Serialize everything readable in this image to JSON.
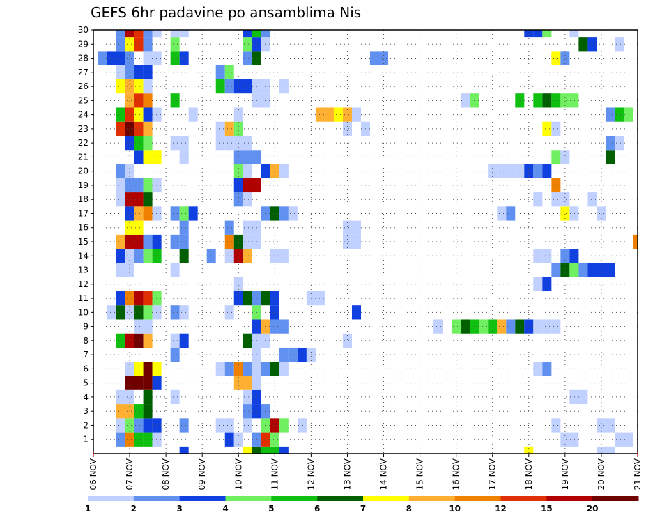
{
  "chart_data": {
    "type": "heatmap",
    "title": "GEFS 6hr padavine po ansamblima Nis",
    "x_tick_labels": [
      "06 NOV",
      "07 NOV",
      "08 NOV",
      "09 NOV",
      "10 NOV",
      "11 NOV",
      "12 NOV",
      "13 NOV",
      "14 NOV",
      "15 NOV",
      "16 NOV",
      "17 NOV",
      "18 NOV",
      "19 NOV",
      "20 NOV",
      "21 NOV"
    ],
    "y_tick_labels": [
      "1",
      "2",
      "3",
      "4",
      "5",
      "6",
      "7",
      "8",
      "9",
      "10",
      "11",
      "12",
      "13",
      "14",
      "15",
      "16",
      "17",
      "18",
      "19",
      "20",
      "21",
      "22",
      "23",
      "24",
      "25",
      "26",
      "27",
      "28",
      "29",
      "30"
    ],
    "ylim": [
      0,
      30
    ],
    "time_steps": 60,
    "steps_per_day": 4,
    "grid": true,
    "colorbar": {
      "levels": [
        "1",
        "2",
        "3",
        "4",
        "5",
        "6",
        "7",
        "8",
        "10",
        "12",
        "15",
        "20"
      ],
      "colors": [
        "#c0d0ff",
        "#6090f0",
        "#1040e0",
        "#70f060",
        "#10c010",
        "#006000",
        "#ffff00",
        "#ffb030",
        "#f08000",
        "#e03000",
        "#b00000",
        "#700000"
      ]
    },
    "rows": {
      "30": [
        [
          3,
          2
        ],
        [
          4,
          11
        ],
        [
          5,
          10
        ],
        [
          6,
          2
        ],
        [
          7,
          1
        ],
        [
          9,
          1
        ],
        [
          10,
          1
        ],
        [
          17,
          3
        ],
        [
          18,
          5
        ],
        [
          19,
          2
        ],
        [
          48,
          3
        ],
        [
          49,
          3
        ],
        [
          50,
          4
        ],
        [
          53,
          1
        ]
      ],
      "29": [
        [
          3,
          2
        ],
        [
          4,
          7
        ],
        [
          5,
          10
        ],
        [
          6,
          2
        ],
        [
          9,
          4
        ],
        [
          17,
          4
        ],
        [
          18,
          3
        ],
        [
          19,
          1
        ],
        [
          54,
          6
        ],
        [
          55,
          3
        ],
        [
          58,
          1
        ]
      ],
      "28": [
        [
          1,
          2
        ],
        [
          2,
          3
        ],
        [
          3,
          3
        ],
        [
          4,
          2
        ],
        [
          6,
          1
        ],
        [
          7,
          1
        ],
        [
          9,
          5
        ],
        [
          10,
          3
        ],
        [
          17,
          2
        ],
        [
          18,
          6
        ],
        [
          31,
          2
        ],
        [
          32,
          2
        ],
        [
          51,
          7
        ],
        [
          52,
          2
        ]
      ],
      "27": [
        [
          3,
          1
        ],
        [
          4,
          2
        ],
        [
          5,
          3
        ],
        [
          6,
          3
        ],
        [
          14,
          2
        ],
        [
          15,
          4
        ]
      ],
      "26": [
        [
          3,
          7
        ],
        [
          4,
          8
        ],
        [
          5,
          7
        ],
        [
          6,
          1
        ],
        [
          14,
          5
        ],
        [
          15,
          2
        ],
        [
          16,
          3
        ],
        [
          17,
          3
        ],
        [
          18,
          1
        ],
        [
          19,
          1
        ],
        [
          21,
          1
        ]
      ],
      "25": [
        [
          4,
          8
        ],
        [
          5,
          10
        ],
        [
          6,
          9
        ],
        [
          9,
          5
        ],
        [
          18,
          1
        ],
        [
          19,
          1
        ],
        [
          41,
          1
        ],
        [
          42,
          4
        ],
        [
          47,
          5
        ],
        [
          49,
          5
        ],
        [
          50,
          6
        ],
        [
          51,
          5
        ],
        [
          52,
          4
        ],
        [
          53,
          4
        ]
      ],
      "24": [
        [
          3,
          5
        ],
        [
          4,
          10
        ],
        [
          5,
          7
        ],
        [
          6,
          3
        ],
        [
          7,
          1
        ],
        [
          11,
          1
        ],
        [
          16,
          1
        ],
        [
          25,
          8
        ],
        [
          26,
          8
        ],
        [
          27,
          7
        ],
        [
          28,
          8
        ],
        [
          29,
          1
        ],
        [
          57,
          2
        ],
        [
          58,
          5
        ],
        [
          59,
          4
        ]
      ],
      "23": [
        [
          3,
          10
        ],
        [
          4,
          12
        ],
        [
          5,
          10
        ],
        [
          6,
          8
        ],
        [
          14,
          1
        ],
        [
          15,
          8
        ],
        [
          16,
          4
        ],
        [
          28,
          1
        ],
        [
          30,
          1
        ],
        [
          50,
          7
        ],
        [
          51,
          1
        ]
      ],
      "22": [
        [
          4,
          3
        ],
        [
          5,
          5
        ],
        [
          6,
          4
        ],
        [
          9,
          1
        ],
        [
          10,
          1
        ],
        [
          14,
          1
        ],
        [
          15,
          1
        ],
        [
          16,
          1
        ],
        [
          17,
          1
        ],
        [
          57,
          2
        ],
        [
          58,
          1
        ]
      ],
      "21": [
        [
          5,
          3
        ],
        [
          6,
          7
        ],
        [
          7,
          7
        ],
        [
          10,
          1
        ],
        [
          16,
          2
        ],
        [
          17,
          2
        ],
        [
          18,
          2
        ],
        [
          51,
          4
        ],
        [
          52,
          1
        ],
        [
          57,
          6
        ]
      ],
      "20": [
        [
          3,
          2
        ],
        [
          4,
          1
        ],
        [
          16,
          4
        ],
        [
          17,
          1
        ],
        [
          19,
          3
        ],
        [
          20,
          8
        ],
        [
          21,
          1
        ],
        [
          44,
          1
        ],
        [
          45,
          1
        ],
        [
          46,
          1
        ],
        [
          47,
          1
        ],
        [
          48,
          3
        ],
        [
          49,
          2
        ],
        [
          50,
          3
        ]
      ],
      "19": [
        [
          3,
          1
        ],
        [
          4,
          2
        ],
        [
          5,
          2
        ],
        [
          6,
          4
        ],
        [
          7,
          1
        ],
        [
          16,
          3
        ],
        [
          17,
          11
        ],
        [
          18,
          11
        ],
        [
          51,
          9
        ]
      ],
      "18": [
        [
          3,
          1
        ],
        [
          4,
          11
        ],
        [
          5,
          11
        ],
        [
          6,
          6
        ],
        [
          16,
          2
        ],
        [
          17,
          1
        ],
        [
          49,
          1
        ],
        [
          51,
          1
        ],
        [
          52,
          1
        ],
        [
          55,
          1
        ]
      ],
      "17": [
        [
          4,
          3
        ],
        [
          5,
          8
        ],
        [
          6,
          9
        ],
        [
          7,
          1
        ],
        [
          9,
          2
        ],
        [
          10,
          4
        ],
        [
          11,
          3
        ],
        [
          19,
          2
        ],
        [
          20,
          6
        ],
        [
          21,
          2
        ],
        [
          22,
          1
        ],
        [
          45,
          1
        ],
        [
          46,
          2
        ],
        [
          52,
          7
        ],
        [
          53,
          1
        ],
        [
          56,
          1
        ]
      ],
      "16": [
        [
          4,
          7
        ],
        [
          5,
          7
        ],
        [
          10,
          2
        ],
        [
          15,
          2
        ],
        [
          17,
          1
        ],
        [
          18,
          1
        ],
        [
          28,
          1
        ],
        [
          29,
          1
        ]
      ],
      "15": [
        [
          3,
          8
        ],
        [
          4,
          11
        ],
        [
          5,
          11
        ],
        [
          6,
          2
        ],
        [
          7,
          3
        ],
        [
          9,
          2
        ],
        [
          10,
          2
        ],
        [
          15,
          9
        ],
        [
          16,
          6
        ],
        [
          17,
          1
        ],
        [
          18,
          1
        ],
        [
          28,
          1
        ],
        [
          29,
          1
        ],
        [
          60,
          9
        ]
      ],
      "14": [
        [
          3,
          3
        ],
        [
          4,
          1
        ],
        [
          5,
          2
        ],
        [
          6,
          4
        ],
        [
          7,
          5
        ],
        [
          10,
          6
        ],
        [
          13,
          2
        ],
        [
          15,
          1
        ],
        [
          16,
          11
        ],
        [
          17,
          8
        ],
        [
          20,
          1
        ],
        [
          21,
          1
        ],
        [
          49,
          1
        ],
        [
          50,
          1
        ],
        [
          52,
          2
        ],
        [
          53,
          3
        ]
      ],
      "13": [
        [
          3,
          1
        ],
        [
          4,
          1
        ],
        [
          9,
          1
        ],
        [
          51,
          2
        ],
        [
          52,
          6
        ],
        [
          53,
          4
        ],
        [
          54,
          2
        ],
        [
          55,
          3
        ],
        [
          56,
          3
        ],
        [
          57,
          3
        ]
      ],
      "12": [
        [
          16,
          1
        ],
        [
          49,
          1
        ],
        [
          50,
          3
        ]
      ],
      "11": [
        [
          3,
          3
        ],
        [
          4,
          9
        ],
        [
          5,
          11
        ],
        [
          6,
          10
        ],
        [
          7,
          4
        ],
        [
          16,
          3
        ],
        [
          17,
          6
        ],
        [
          18,
          2
        ],
        [
          19,
          6
        ],
        [
          20,
          3
        ],
        [
          24,
          1
        ],
        [
          25,
          1
        ]
      ],
      "10": [
        [
          2,
          1
        ],
        [
          3,
          6
        ],
        [
          4,
          1
        ],
        [
          5,
          6
        ],
        [
          6,
          4
        ],
        [
          7,
          1
        ],
        [
          9,
          2
        ],
        [
          10,
          1
        ],
        [
          15,
          1
        ],
        [
          18,
          4
        ],
        [
          20,
          3
        ],
        [
          29,
          3
        ]
      ],
      "9": [
        [
          5,
          1
        ],
        [
          6,
          1
        ],
        [
          18,
          3
        ],
        [
          19,
          8
        ],
        [
          20,
          2
        ],
        [
          21,
          2
        ],
        [
          38,
          1
        ],
        [
          40,
          4
        ],
        [
          41,
          6
        ],
        [
          42,
          5
        ],
        [
          43,
          4
        ],
        [
          44,
          5
        ],
        [
          45,
          8
        ],
        [
          46,
          2
        ],
        [
          47,
          6
        ],
        [
          48,
          3
        ],
        [
          49,
          1
        ],
        [
          50,
          1
        ],
        [
          51,
          1
        ]
      ],
      "8": [
        [
          3,
          5
        ],
        [
          4,
          11
        ],
        [
          5,
          12
        ],
        [
          6,
          8
        ],
        [
          9,
          1
        ],
        [
          10,
          3
        ],
        [
          17,
          6
        ],
        [
          18,
          1
        ],
        [
          19,
          1
        ],
        [
          28,
          1
        ]
      ],
      "7": [
        [
          9,
          2
        ],
        [
          18,
          1
        ],
        [
          21,
          2
        ],
        [
          22,
          2
        ],
        [
          23,
          3
        ],
        [
          24,
          1
        ]
      ],
      "6": [
        [
          4,
          1
        ],
        [
          5,
          7
        ],
        [
          6,
          12
        ],
        [
          7,
          7
        ],
        [
          14,
          1
        ],
        [
          15,
          2
        ],
        [
          16,
          9
        ],
        [
          17,
          2
        ],
        [
          18,
          1
        ],
        [
          19,
          2
        ],
        [
          20,
          6
        ],
        [
          21,
          1
        ],
        [
          49,
          1
        ],
        [
          50,
          2
        ]
      ],
      "5": [
        [
          4,
          12
        ],
        [
          5,
          12
        ],
        [
          6,
          12
        ],
        [
          7,
          3
        ],
        [
          16,
          8
        ],
        [
          17,
          8
        ],
        [
          18,
          1
        ]
      ],
      "4": [
        [
          3,
          1
        ],
        [
          4,
          1
        ],
        [
          6,
          6
        ],
        [
          9,
          1
        ],
        [
          17,
          1
        ],
        [
          18,
          3
        ],
        [
          53,
          1
        ],
        [
          54,
          1
        ]
      ],
      "3": [
        [
          3,
          8
        ],
        [
          4,
          8
        ],
        [
          5,
          5
        ],
        [
          6,
          6
        ],
        [
          17,
          2
        ],
        [
          18,
          3
        ],
        [
          19,
          2
        ]
      ],
      "2": [
        [
          3,
          1
        ],
        [
          4,
          4
        ],
        [
          5,
          2
        ],
        [
          6,
          3
        ],
        [
          7,
          3
        ],
        [
          10,
          2
        ],
        [
          14,
          1
        ],
        [
          15,
          1
        ],
        [
          17,
          1
        ],
        [
          19,
          4
        ],
        [
          20,
          11
        ],
        [
          21,
          4
        ],
        [
          23,
          1
        ],
        [
          51,
          1
        ],
        [
          56,
          1
        ],
        [
          57,
          1
        ]
      ],
      "1": [
        [
          3,
          2
        ],
        [
          4,
          9
        ],
        [
          5,
          5
        ],
        [
          6,
          5
        ],
        [
          7,
          1
        ],
        [
          15,
          3
        ],
        [
          16,
          1
        ],
        [
          18,
          2
        ],
        [
          19,
          10
        ],
        [
          20,
          4
        ],
        [
          52,
          1
        ],
        [
          53,
          1
        ],
        [
          58,
          1
        ],
        [
          59,
          1
        ]
      ],
      "0": [
        [
          10,
          3
        ],
        [
          17,
          7
        ],
        [
          18,
          6
        ],
        [
          19,
          5
        ],
        [
          20,
          5
        ],
        [
          21,
          3
        ],
        [
          48,
          7
        ],
        [
          56,
          1
        ],
        [
          57,
          1
        ]
      ]
    }
  }
}
